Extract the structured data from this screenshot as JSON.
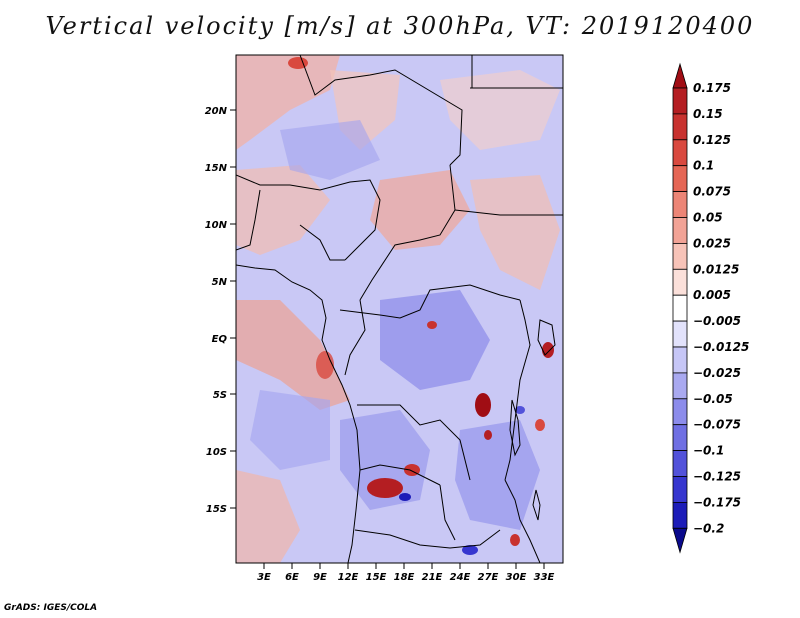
{
  "title": "Vertical velocity [m/s] at 300hPa, VT: 2019120400",
  "credit": "GrADS: IGES/COLA",
  "map": {
    "lon_range": [
      0,
      35
    ],
    "lat_range": [
      -20,
      25
    ],
    "lat_ticks": [
      "20N",
      "15N",
      "10N",
      "5N",
      "EQ",
      "5S",
      "10S",
      "15S"
    ],
    "lon_ticks": [
      "3E",
      "6E",
      "9E",
      "12E",
      "15E",
      "18E",
      "21E",
      "24E",
      "27E",
      "30E",
      "33E"
    ]
  },
  "colorbar": {
    "labels": [
      "0.175",
      "0.15",
      "0.125",
      "0.1",
      "0.075",
      "0.05",
      "0.025",
      "0.0125",
      "0.005",
      "−0.005",
      "−0.0125",
      "−0.025",
      "−0.05",
      "−0.075",
      "−0.1",
      "−0.125",
      "−0.175",
      "−0.2"
    ],
    "colors": [
      "#a00d14",
      "#b41e22",
      "#c8322f",
      "#d9493f",
      "#e56655",
      "#ec8576",
      "#f2a396",
      "#f7c3b8",
      "#fbe0da",
      "#ffffff",
      "#e2e2fb",
      "#c6c6f6",
      "#a9a9f0",
      "#8c8ceb",
      "#6f6fe3",
      "#5252da",
      "#3636cf",
      "#1c1cb8",
      "#0a0a8c"
    ]
  }
}
